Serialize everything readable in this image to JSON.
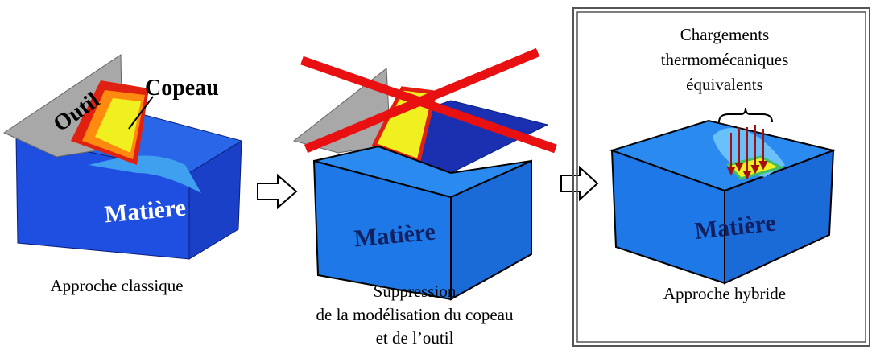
{
  "panels": [
    {
      "tool_label": "Outil",
      "chip_label": "Copeau",
      "material_label": "Matière",
      "caption": [
        "Approche classique"
      ]
    },
    {
      "material_label": "Matière",
      "caption": [
        "Suppression",
        "de la modélisation du copeau",
        "et de l’outil"
      ]
    },
    {
      "loads_label": [
        "Chargements",
        "thermomécaniques",
        "équivalents"
      ],
      "material_label": "Matière",
      "caption": [
        "Approche hybride"
      ]
    }
  ]
}
